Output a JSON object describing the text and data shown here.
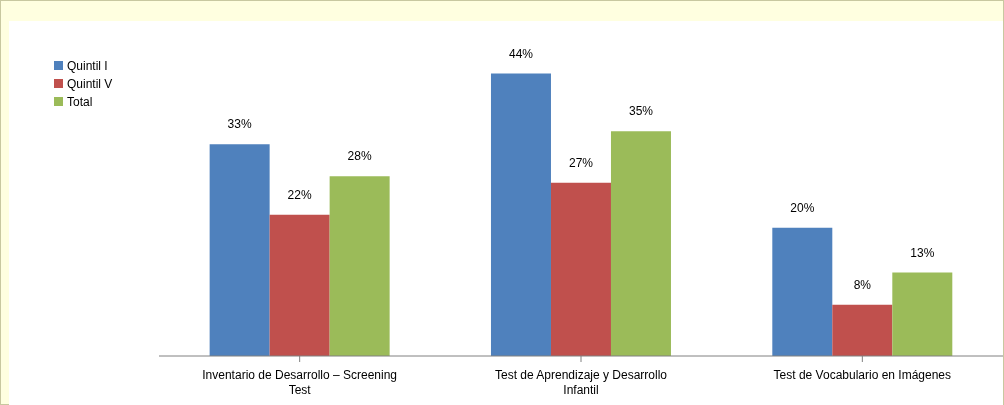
{
  "chart_data": {
    "type": "bar",
    "categories": [
      "Inventario de Desarrollo – Screening Test",
      "Test de Aprendizaje y Desarrollo Infantil",
      "Test de Vocabulario en Imágenes"
    ],
    "series": [
      {
        "name": "Quintil I",
        "color": "#4f81bd",
        "values": [
          33,
          44,
          20
        ],
        "value_labels": [
          "33%",
          "44%",
          "20%"
        ]
      },
      {
        "name": "Quintil V",
        "color": "#c0504d",
        "values": [
          22,
          27,
          8
        ],
        "value_labels": [
          "22%",
          "27%",
          "8%"
        ]
      },
      {
        "name": "Total",
        "color": "#9bbb59",
        "values": [
          28,
          35,
          13
        ],
        "value_labels": [
          "28%",
          "35%",
          "13%"
        ]
      }
    ],
    "legend": "top left"
  }
}
